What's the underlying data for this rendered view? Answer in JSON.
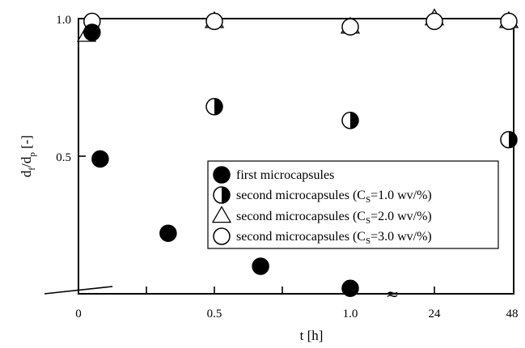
{
  "chart_data": {
    "type": "scatter",
    "xlabel": "t [h]",
    "ylabel_parts": {
      "a": "d",
      "a_sub": "f",
      "slash": "/d",
      "b_sub": "p",
      "unit": " [-]"
    },
    "x_ticks": [
      "0",
      "0.5",
      "1.0",
      "24",
      "48"
    ],
    "y_ticks": [
      "0.5",
      "1.0"
    ],
    "ylim": [
      0,
      1.0
    ],
    "x_axis_break": "between 1.0 and 24",
    "break_symbol": "≈",
    "grid": false,
    "legend_position": "center-right",
    "series": [
      {
        "name": "first microcapsules",
        "marker": "filled-circle",
        "points": [
          {
            "t": "0.05",
            "y": 0.95
          },
          {
            "t": "0.08",
            "y": 0.49
          },
          {
            "t": "0.33",
            "y": 0.22
          },
          {
            "t": "0.67",
            "y": 0.1
          },
          {
            "t": "1.0",
            "y": 0.02
          }
        ]
      },
      {
        "name_parts": {
          "pre": "second microcapsules (C",
          "sub": "S",
          "post": "=1.0 wv/%)"
        },
        "marker": "half-filled-circle",
        "points": [
          {
            "t": "0.5",
            "y": 0.68
          },
          {
            "t": "1.0",
            "y": 0.63
          },
          {
            "t": "48",
            "y": 0.56
          }
        ]
      },
      {
        "name_parts": {
          "pre": "second microcapsules (C",
          "sub": "S",
          "post": "=2.0 wv/%)"
        },
        "marker": "open-triangle",
        "points": [
          {
            "t": "0.03",
            "y": 0.94
          },
          {
            "t": "0.5",
            "y": 0.99
          },
          {
            "t": "1.0",
            "y": 0.97
          },
          {
            "t": "24",
            "y": 1.0
          },
          {
            "t": "48",
            "y": 0.99
          }
        ]
      },
      {
        "name_parts": {
          "pre": "second microcapsules (C",
          "sub": "S",
          "post": "=3.0 wv/%)"
        },
        "marker": "open-circle",
        "points": [
          {
            "t": "0.05",
            "y": 0.99
          },
          {
            "t": "0.5",
            "y": 0.99
          },
          {
            "t": "1.0",
            "y": 0.97
          },
          {
            "t": "24",
            "y": 0.99
          },
          {
            "t": "48",
            "y": 0.99
          }
        ]
      }
    ]
  }
}
